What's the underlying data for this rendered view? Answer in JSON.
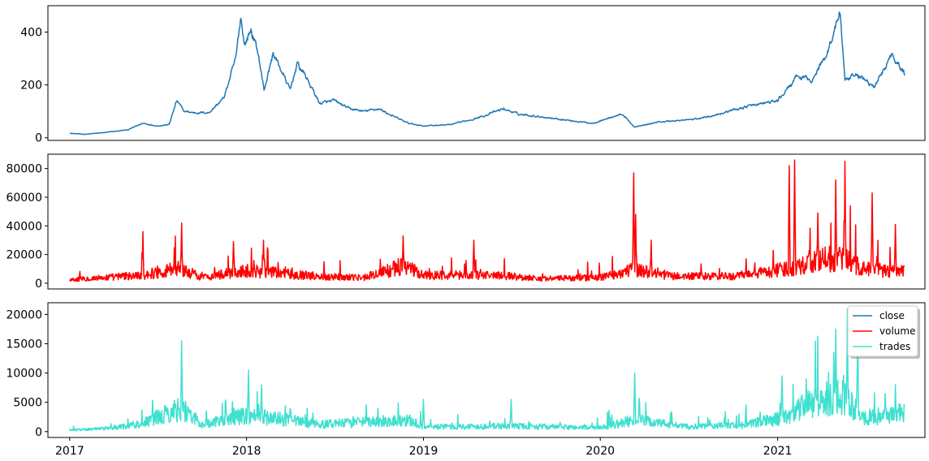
{
  "chart_data": [
    {
      "type": "line",
      "series": [
        {
          "name": "close",
          "color": "#1f77b4"
        }
      ],
      "xlim": [
        "2016-11-17",
        "2021-11-01"
      ],
      "ylim": [
        -10,
        500
      ],
      "yticks": [
        0,
        200,
        400
      ],
      "xticks_visible": false,
      "anchors": [
        [
          "2017-01-01",
          17
        ],
        [
          "2017-02-01",
          13
        ],
        [
          "2017-03-15",
          20
        ],
        [
          "2017-05-01",
          30
        ],
        [
          "2017-06-01",
          55
        ],
        [
          "2017-07-01",
          45
        ],
        [
          "2017-07-25",
          50
        ],
        [
          "2017-08-10",
          140
        ],
        [
          "2017-08-25",
          100
        ],
        [
          "2017-09-15",
          95
        ],
        [
          "2017-10-15",
          95
        ],
        [
          "2017-11-15",
          150
        ],
        [
          "2017-12-10",
          300
        ],
        [
          "2017-12-20",
          460
        ],
        [
          "2017-12-28",
          350
        ],
        [
          "2018-01-10",
          410
        ],
        [
          "2018-01-25",
          320
        ],
        [
          "2018-02-06",
          180
        ],
        [
          "2018-02-25",
          320
        ],
        [
          "2018-03-15",
          250
        ],
        [
          "2018-04-01",
          180
        ],
        [
          "2018-04-15",
          280
        ],
        [
          "2018-05-01",
          240
        ],
        [
          "2018-06-01",
          130
        ],
        [
          "2018-07-01",
          140
        ],
        [
          "2018-08-01",
          110
        ],
        [
          "2018-09-01",
          100
        ],
        [
          "2018-10-01",
          110
        ],
        [
          "2018-11-01",
          80
        ],
        [
          "2018-12-01",
          55
        ],
        [
          "2019-01-01",
          45
        ],
        [
          "2019-03-01",
          50
        ],
        [
          "2019-05-01",
          80
        ],
        [
          "2019-06-15",
          110
        ],
        [
          "2019-07-15",
          90
        ],
        [
          "2019-09-01",
          80
        ],
        [
          "2019-11-01",
          65
        ],
        [
          "2019-12-15",
          55
        ],
        [
          "2020-02-15",
          90
        ],
        [
          "2020-03-12",
          40
        ],
        [
          "2020-05-01",
          60
        ],
        [
          "2020-07-15",
          70
        ],
        [
          "2020-09-01",
          90
        ],
        [
          "2020-11-01",
          120
        ],
        [
          "2021-01-01",
          140
        ],
        [
          "2021-02-10",
          230
        ],
        [
          "2021-03-15",
          220
        ],
        [
          "2021-04-15",
          330
        ],
        [
          "2021-05-10",
          480
        ],
        [
          "2021-05-20",
          210
        ],
        [
          "2021-06-15",
          240
        ],
        [
          "2021-07-20",
          190
        ],
        [
          "2021-08-25",
          320
        ],
        [
          "2021-09-20",
          240
        ]
      ]
    },
    {
      "type": "line",
      "series": [
        {
          "name": "volume",
          "color": "#ff0000"
        }
      ],
      "xlim": [
        "2016-11-17",
        "2021-11-01"
      ],
      "ylim": [
        -4000,
        90000
      ],
      "yticks": [
        0,
        20000,
        40000,
        60000,
        80000
      ],
      "xticks_visible": false,
      "baseline": [
        [
          "2017-01-01",
          3000
        ],
        [
          "2017-06-01",
          7000
        ],
        [
          "2017-08-15",
          13000
        ],
        [
          "2017-10-01",
          5000
        ],
        [
          "2018-01-01",
          11000
        ],
        [
          "2018-03-01",
          9000
        ],
        [
          "2018-06-01",
          6000
        ],
        [
          "2018-09-01",
          5000
        ],
        [
          "2018-11-20",
          15000
        ],
        [
          "2019-01-01",
          7000
        ],
        [
          "2019-06-01",
          7000
        ],
        [
          "2019-09-01",
          4000
        ],
        [
          "2020-01-01",
          5000
        ],
        [
          "2020-03-15",
          12000
        ],
        [
          "2020-06-01",
          6000
        ],
        [
          "2020-10-01",
          6000
        ],
        [
          "2021-01-15",
          12000
        ],
        [
          "2021-03-01",
          18000
        ],
        [
          "2021-05-10",
          22000
        ],
        [
          "2021-07-01",
          12000
        ],
        [
          "2021-09-20",
          10000
        ]
      ],
      "spikes": [
        [
          "2017-06-01",
          36000
        ],
        [
          "2017-08-20",
          42000
        ],
        [
          "2017-12-05",
          29000
        ],
        [
          "2018-02-05",
          30000
        ],
        [
          "2018-11-20",
          33000
        ],
        [
          "2019-04-15",
          30000
        ],
        [
          "2020-03-10",
          77000
        ],
        [
          "2020-03-14",
          48000
        ],
        [
          "2020-04-15",
          30000
        ],
        [
          "2021-01-25",
          82000
        ],
        [
          "2021-02-05",
          86000
        ],
        [
          "2021-03-25",
          49000
        ],
        [
          "2021-05-01",
          72000
        ],
        [
          "2021-05-20",
          85000
        ],
        [
          "2021-07-15",
          63000
        ],
        [
          "2021-09-01",
          41000
        ]
      ]
    },
    {
      "type": "line",
      "series": [
        {
          "name": "trades",
          "color": "#40e0d0"
        }
      ],
      "xlim": [
        "2016-11-17",
        "2021-11-01"
      ],
      "ylim": [
        -1000,
        22000
      ],
      "yticks": [
        0,
        5000,
        10000,
        15000,
        20000
      ],
      "xticks": [
        "2017",
        "2018",
        "2019",
        "2020",
        "2021"
      ],
      "baseline": [
        [
          "2017-01-01",
          300
        ],
        [
          "2017-04-01",
          800
        ],
        [
          "2017-06-01",
          1800
        ],
        [
          "2017-08-20",
          5000
        ],
        [
          "2017-10-01",
          1500
        ],
        [
          "2018-01-01",
          3500
        ],
        [
          "2018-03-01",
          2800
        ],
        [
          "2018-06-01",
          1500
        ],
        [
          "2018-12-01",
          2500
        ],
        [
          "2019-01-01",
          1000
        ],
        [
          "2019-07-01",
          1200
        ],
        [
          "2020-01-01",
          800
        ],
        [
          "2020-03-12",
          2500
        ],
        [
          "2020-07-01",
          1000
        ],
        [
          "2020-11-01",
          1500
        ],
        [
          "2021-01-15",
          3000
        ],
        [
          "2021-02-20",
          5000
        ],
        [
          "2021-05-15",
          8000
        ],
        [
          "2021-07-01",
          3000
        ],
        [
          "2021-09-20",
          4000
        ]
      ],
      "spikes": [
        [
          "2017-08-20",
          15500
        ],
        [
          "2018-01-05",
          10500
        ],
        [
          "2018-02-01",
          8000
        ],
        [
          "2019-01-01",
          5500
        ],
        [
          "2019-07-01",
          5500
        ],
        [
          "2020-03-12",
          10000
        ],
        [
          "2021-01-10",
          9500
        ],
        [
          "2021-03-01",
          9000
        ],
        [
          "2021-05-01",
          17500
        ],
        [
          "2021-05-25",
          21000
        ],
        [
          "2021-06-15",
          15500
        ],
        [
          "2021-09-01",
          8000
        ]
      ]
    }
  ],
  "legend": {
    "placement": "top-right",
    "entries": [
      {
        "label": "close",
        "color": "#1f77b4"
      },
      {
        "label": "volume",
        "color": "#ff0000"
      },
      {
        "label": "trades",
        "color": "#40e0d0"
      }
    ]
  }
}
